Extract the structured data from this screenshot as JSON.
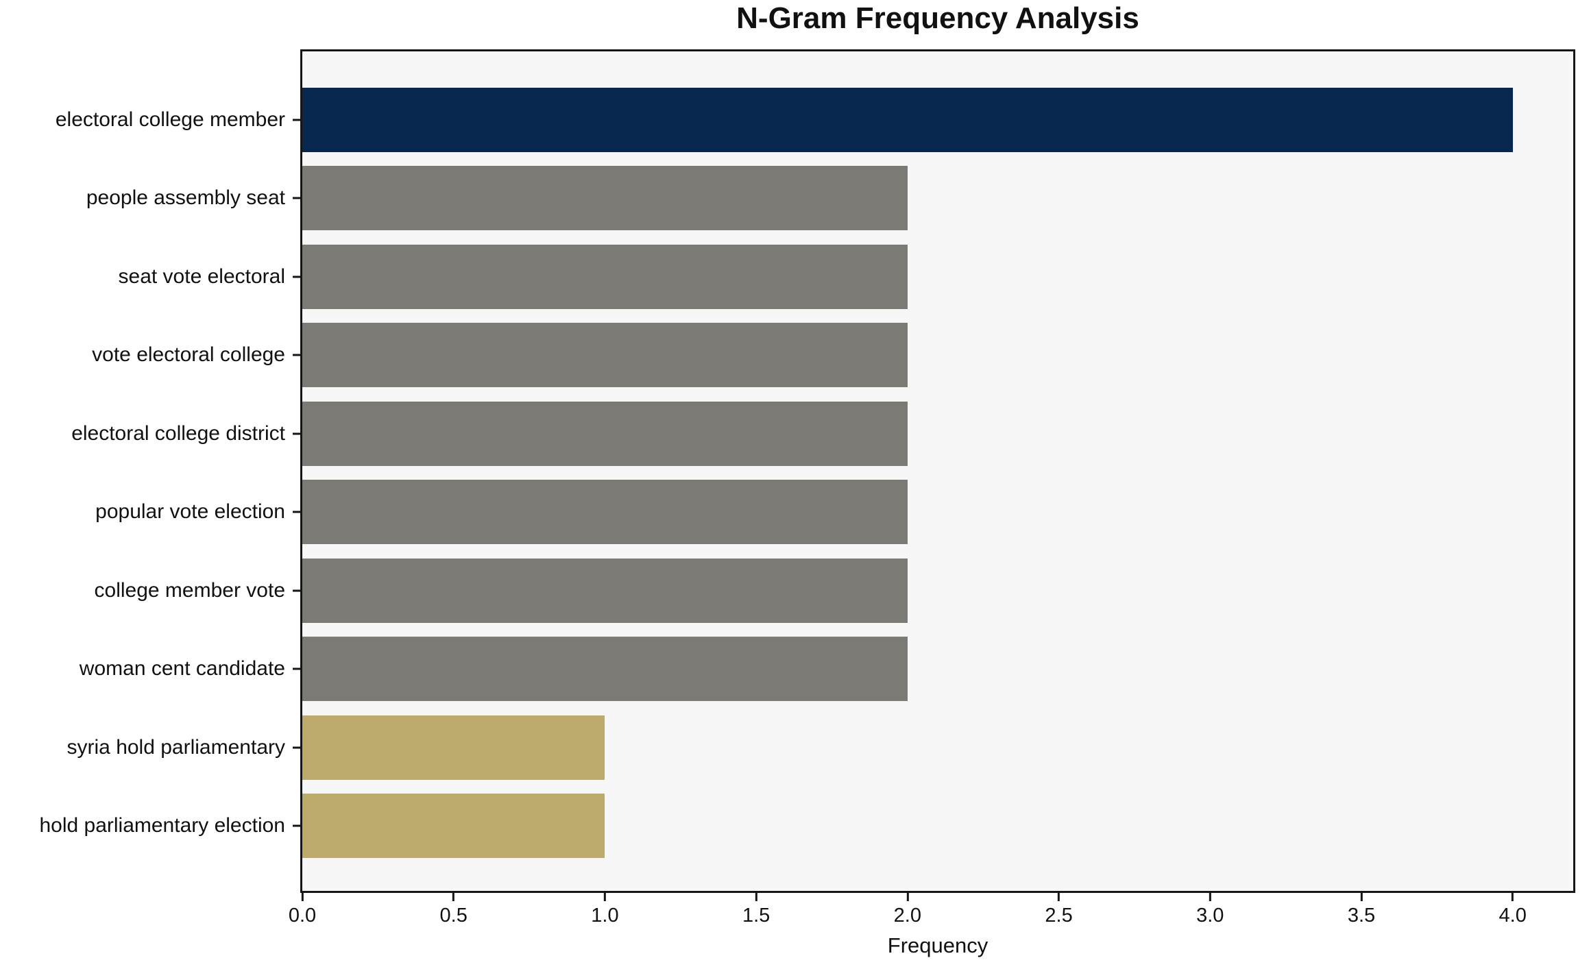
{
  "chart_data": {
    "type": "bar",
    "orientation": "horizontal",
    "title": "N-Gram Frequency Analysis",
    "xlabel": "Frequency",
    "ylabel": "",
    "categories": [
      "electoral college member",
      "people assembly seat",
      "seat vote electoral",
      "vote electoral college",
      "electoral college district",
      "popular vote election",
      "college member vote",
      "woman cent candidate",
      "syria hold parliamentary",
      "hold parliamentary election"
    ],
    "values": [
      4,
      2,
      2,
      2,
      2,
      2,
      2,
      2,
      1,
      1
    ],
    "bar_colors": [
      "#07274f",
      "#7b7a75",
      "#7b7a75",
      "#7b7a75",
      "#7b7a75",
      "#7b7a75",
      "#7b7a75",
      "#7b7a75",
      "#bcab6a",
      "#bcab6a"
    ],
    "x_ticks": [
      "0.0",
      "0.5",
      "1.0",
      "1.5",
      "2.0",
      "2.5",
      "3.0",
      "3.5",
      "4.0"
    ],
    "xlim": [
      0,
      4.2
    ],
    "grid": false,
    "legend_position": "none",
    "plot_bg": "#f7f7f7",
    "outer_bg": "#ffffff",
    "spine_color": "#161616"
  }
}
